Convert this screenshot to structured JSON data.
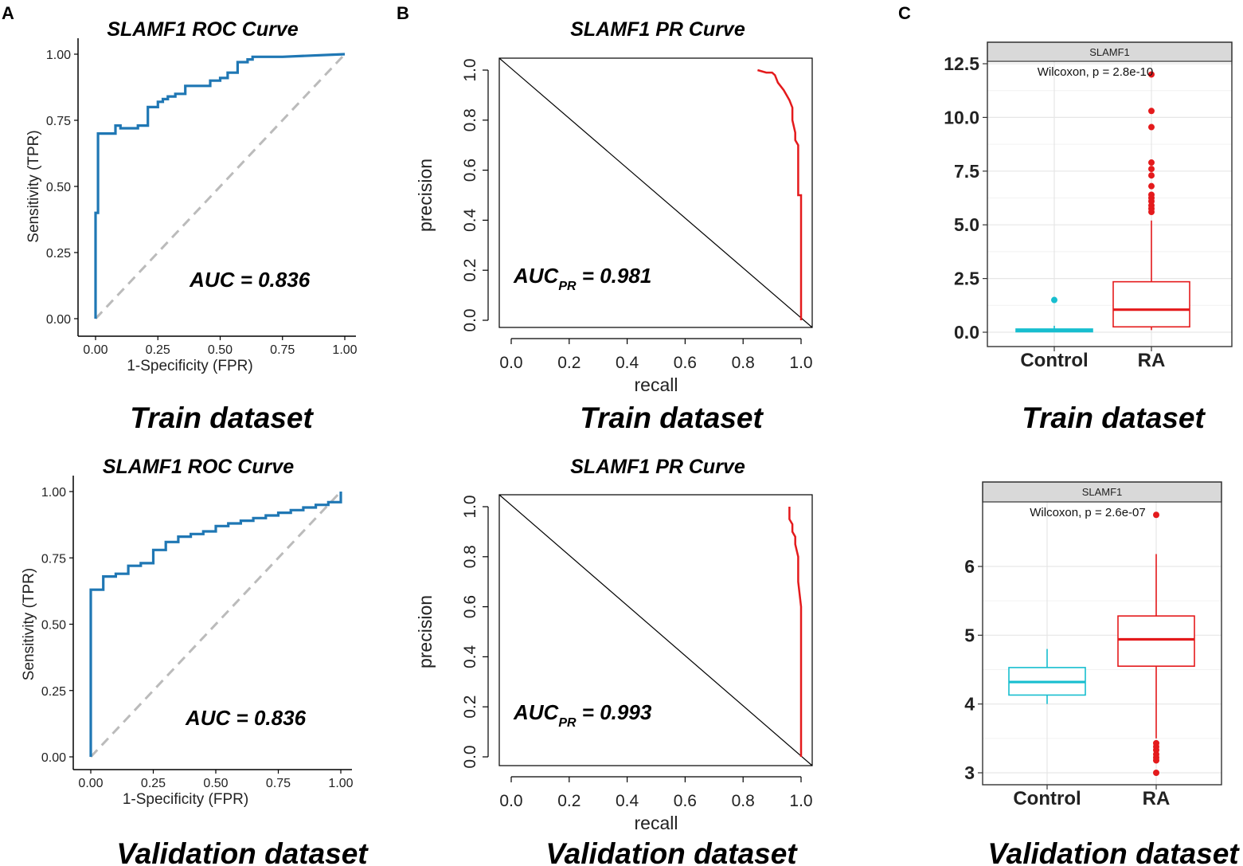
{
  "panel_labels": [
    "A",
    "B",
    "C"
  ],
  "captions": {
    "train": "Train dataset",
    "validation": "Validation dataset"
  },
  "chart_data": [
    {
      "id": "roc_train",
      "type": "line",
      "title": "SLAMF1 ROC Curve",
      "xlabel": "1-Specificity (FPR)",
      "ylabel": "Sensitivity (TPR)",
      "xlim": [
        0,
        1
      ],
      "ylim": [
        0,
        1
      ],
      "xticks": [
        "0.00",
        "0.25",
        "0.50",
        "0.75",
        "1.00"
      ],
      "yticks": [
        "0.00",
        "0.25",
        "0.50",
        "0.75",
        "1.00"
      ],
      "annotation": "AUC = 0.836",
      "colors": {
        "curve": "#1f77b4",
        "diagonal": "#bbbbbb"
      },
      "series": [
        {
          "name": "ROC",
          "x": [
            0,
            0,
            0.01,
            0.01,
            0.04,
            0.04,
            0.08,
            0.08,
            0.1,
            0.1,
            0.17,
            0.17,
            0.21,
            0.21,
            0.25,
            0.25,
            0.27,
            0.27,
            0.29,
            0.29,
            0.32,
            0.32,
            0.36,
            0.36,
            0.46,
            0.46,
            0.5,
            0.5,
            0.53,
            0.53,
            0.57,
            0.57,
            0.61,
            0.61,
            0.63,
            0.63,
            0.75,
            0.75,
            1
          ],
          "y": [
            0,
            0.4,
            0.4,
            0.7,
            0.7,
            0.7,
            0.7,
            0.73,
            0.73,
            0.72,
            0.72,
            0.73,
            0.73,
            0.8,
            0.8,
            0.82,
            0.82,
            0.83,
            0.83,
            0.84,
            0.84,
            0.85,
            0.85,
            0.88,
            0.88,
            0.9,
            0.9,
            0.91,
            0.91,
            0.93,
            0.93,
            0.97,
            0.97,
            0.98,
            0.98,
            0.99,
            0.99,
            0.99,
            1
          ]
        }
      ]
    },
    {
      "id": "roc_validation",
      "type": "line",
      "title": "SLAMF1 ROC Curve",
      "xlabel": "1-Specificity (FPR)",
      "ylabel": "Sensitivity (TPR)",
      "xlim": [
        0,
        1
      ],
      "ylim": [
        0,
        1
      ],
      "xticks": [
        "0.00",
        "0.25",
        "0.50",
        "0.75",
        "1.00"
      ],
      "yticks": [
        "0.00",
        "0.25",
        "0.50",
        "0.75",
        "1.00"
      ],
      "annotation": "AUC = 0.836",
      "colors": {
        "curve": "#1f77b4",
        "diagonal": "#bbbbbb"
      },
      "series": [
        {
          "name": "ROC",
          "x": [
            0,
            0,
            0.05,
            0.05,
            0.1,
            0.1,
            0.15,
            0.15,
            0.2,
            0.2,
            0.25,
            0.25,
            0.3,
            0.3,
            0.35,
            0.35,
            0.4,
            0.4,
            0.45,
            0.45,
            0.5,
            0.5,
            0.55,
            0.55,
            0.6,
            0.6,
            0.65,
            0.65,
            0.7,
            0.7,
            0.75,
            0.75,
            0.8,
            0.8,
            0.85,
            0.85,
            0.9,
            0.9,
            0.95,
            0.95,
            1,
            1
          ],
          "y": [
            0,
            0.63,
            0.63,
            0.68,
            0.68,
            0.69,
            0.69,
            0.72,
            0.72,
            0.73,
            0.73,
            0.78,
            0.78,
            0.81,
            0.81,
            0.83,
            0.83,
            0.84,
            0.84,
            0.85,
            0.85,
            0.87,
            0.87,
            0.88,
            0.88,
            0.89,
            0.89,
            0.9,
            0.9,
            0.91,
            0.91,
            0.92,
            0.92,
            0.93,
            0.93,
            0.94,
            0.94,
            0.95,
            0.95,
            0.96,
            0.96,
            1
          ]
        }
      ]
    },
    {
      "id": "pr_train",
      "type": "line",
      "title": "SLAMF1 PR Curve",
      "xlabel": "recall",
      "ylabel": "precision",
      "xlim": [
        -0.04,
        1.04
      ],
      "ylim": [
        -0.04,
        1.04
      ],
      "xticks": [
        "0.0",
        "0.2",
        "0.4",
        "0.6",
        "0.8",
        "1.0"
      ],
      "yticks": [
        "0.0",
        "0.2",
        "0.4",
        "0.6",
        "0.8",
        "1.0"
      ],
      "annotation_main": "AUC",
      "annotation_sub": "PR",
      "annotation_value": " = 0.981",
      "colors": {
        "curve": "#e41a1c",
        "diagonal": "#000000"
      },
      "series": [
        {
          "name": "PR",
          "x": [
            0.85,
            0.88,
            0.9,
            0.91,
            0.92,
            0.94,
            0.95,
            0.96,
            0.97,
            0.97,
            0.98,
            0.98,
            0.99,
            0.99,
            1,
            1,
            1
          ],
          "y": [
            1,
            0.99,
            0.99,
            0.98,
            0.95,
            0.92,
            0.9,
            0.88,
            0.85,
            0.8,
            0.75,
            0.72,
            0.7,
            0.5,
            0.5,
            0.2,
            0
          ]
        }
      ]
    },
    {
      "id": "pr_validation",
      "type": "line",
      "title": "SLAMF1 PR Curve",
      "xlabel": "recall",
      "ylabel": "precision",
      "xlim": [
        -0.04,
        1.04
      ],
      "ylim": [
        -0.04,
        1.04
      ],
      "xticks": [
        "0.0",
        "0.2",
        "0.4",
        "0.6",
        "0.8",
        "1.0"
      ],
      "yticks": [
        "0.0",
        "0.2",
        "0.4",
        "0.6",
        "0.8",
        "1.0"
      ],
      "annotation_main": "AUC",
      "annotation_sub": "PR",
      "annotation_value": " = 0.993",
      "colors": {
        "curve": "#e41a1c",
        "diagonal": "#000000"
      },
      "series": [
        {
          "name": "PR",
          "x": [
            0.96,
            0.96,
            0.97,
            0.97,
            0.98,
            0.98,
            0.99,
            0.99,
            0.99,
            1,
            1,
            1
          ],
          "y": [
            1,
            0.95,
            0.93,
            0.9,
            0.88,
            0.85,
            0.8,
            0.75,
            0.7,
            0.6,
            0.3,
            0
          ]
        }
      ]
    },
    {
      "id": "box_train",
      "type": "box",
      "strip_label": "SLAMF1",
      "annotation": "Wilcoxon, p = 2.8e-10",
      "categories": [
        "Control",
        "RA"
      ],
      "ylim": [
        -0.6,
        12.6
      ],
      "yticks": [
        0,
        2.5,
        5,
        7.5,
        10,
        12.5
      ],
      "ytick_labels": [
        "0.0",
        "2.5",
        "5.0",
        "7.5",
        "10.0",
        "12.5"
      ],
      "colors": {
        "Control": "#17becf",
        "RA": "#e41a1c"
      },
      "boxes": [
        {
          "name": "Control",
          "q1": 0.02,
          "median": 0.08,
          "q3": 0.15,
          "whisker_low": 0,
          "whisker_high": 0.3,
          "outliers": [
            1.5
          ]
        },
        {
          "name": "RA",
          "q1": 0.25,
          "median": 1.05,
          "q3": 2.35,
          "whisker_low": 0.1,
          "whisker_high": 5.2,
          "outliers": [
            5.6,
            5.75,
            5.9,
            6.1,
            6.25,
            6.4,
            6.8,
            7.3,
            7.6,
            7.9,
            9.55,
            10.3,
            12.0
          ]
        }
      ]
    },
    {
      "id": "box_validation",
      "type": "box",
      "strip_label": "SLAMF1",
      "annotation": "Wilcoxon, p = 2.6e-07",
      "categories": [
        "Control",
        "RA"
      ],
      "ylim": [
        2.83,
        6.98
      ],
      "yticks": [
        3,
        4,
        5,
        6
      ],
      "ytick_labels": [
        "3",
        "4",
        "5",
        "6"
      ],
      "colors": {
        "Control": "#17becf",
        "RA": "#e41a1c"
      },
      "boxes": [
        {
          "name": "Control",
          "q1": 4.13,
          "median": 4.32,
          "q3": 4.53,
          "whisker_low": 4.0,
          "whisker_high": 4.8,
          "outliers": []
        },
        {
          "name": "RA",
          "q1": 4.55,
          "median": 4.94,
          "q3": 5.28,
          "whisker_low": 3.5,
          "whisker_high": 6.18,
          "outliers": [
            3.0,
            3.18,
            3.22,
            3.27,
            3.33,
            3.38,
            3.43,
            6.75
          ]
        }
      ]
    }
  ]
}
